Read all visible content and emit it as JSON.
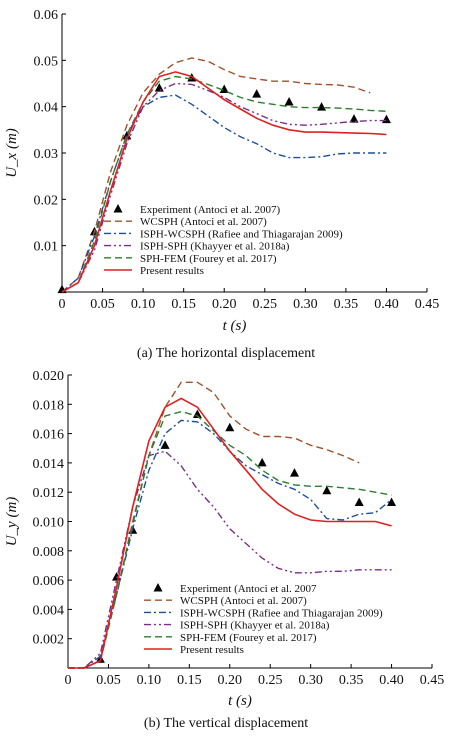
{
  "chart_data": [
    {
      "type": "line",
      "caption": "(a) The horizontal displacement",
      "xlabel": "t (s)",
      "ylabel": "U_x (m)",
      "xlim": [
        0,
        0.45
      ],
      "ylim": [
        0,
        0.06
      ],
      "xticks": [
        "0",
        "0.05",
        "0.10",
        "0.15",
        "0.20",
        "0.25",
        "0.30",
        "0.35",
        "0.40",
        "0.45"
      ],
      "yticks": [
        "0.01",
        "0.02",
        "0.03",
        "0.04",
        "0.05",
        "0.06"
      ],
      "legend_position": "bottom-center",
      "series": [
        {
          "name": "Experiment (Antoci et al. 2007)",
          "style": "marker",
          "color": "#000000",
          "x": [
            0.0,
            0.04,
            0.08,
            0.12,
            0.16,
            0.2,
            0.24,
            0.28,
            0.32,
            0.36,
            0.4
          ],
          "y": [
            0.0005,
            0.013,
            0.0337,
            0.044,
            0.0462,
            0.0437,
            0.0427,
            0.041,
            0.0399,
            0.0373,
            0.0372
          ]
        },
        {
          "name": "WCSPH (Antoci et al. 2007)",
          "style": "dashed",
          "color": "#a0522d",
          "x": [
            0.0,
            0.02,
            0.04,
            0.06,
            0.08,
            0.1,
            0.12,
            0.14,
            0.16,
            0.18,
            0.2,
            0.22,
            0.24,
            0.26,
            0.28,
            0.3,
            0.32,
            0.34,
            0.36,
            0.38
          ],
          "y": [
            0.0,
            0.003,
            0.013,
            0.026,
            0.036,
            0.043,
            0.047,
            0.0495,
            0.0505,
            0.0498,
            0.048,
            0.0465,
            0.046,
            0.0455,
            0.0455,
            0.045,
            0.0448,
            0.0447,
            0.0442,
            0.043
          ]
        },
        {
          "name": "ISPH-WCSPH (Rafiee and Thiagarajan 2009)",
          "style": "dashdot",
          "color": "#1f4e9e",
          "x": [
            0.0,
            0.02,
            0.04,
            0.06,
            0.08,
            0.1,
            0.12,
            0.14,
            0.16,
            0.18,
            0.2,
            0.22,
            0.24,
            0.26,
            0.28,
            0.3,
            0.32,
            0.34,
            0.36,
            0.38,
            0.4
          ],
          "y": [
            0.0,
            0.003,
            0.012,
            0.024,
            0.034,
            0.04,
            0.042,
            0.0425,
            0.0405,
            0.038,
            0.0355,
            0.0335,
            0.032,
            0.03,
            0.029,
            0.029,
            0.0292,
            0.0298,
            0.03,
            0.03,
            0.03
          ]
        },
        {
          "name": "ISPH-SPH (Khayyer et al. 2018a)",
          "style": "dashdotdot",
          "color": "#7a2d8c",
          "x": [
            0.0,
            0.02,
            0.04,
            0.06,
            0.08,
            0.1,
            0.12,
            0.14,
            0.16,
            0.18,
            0.2,
            0.22,
            0.24,
            0.26,
            0.28,
            0.3,
            0.32,
            0.34,
            0.36,
            0.38,
            0.4
          ],
          "y": [
            0.0,
            0.002,
            0.009,
            0.021,
            0.032,
            0.04,
            0.0435,
            0.045,
            0.0448,
            0.0435,
            0.042,
            0.04,
            0.0385,
            0.037,
            0.0362,
            0.036,
            0.0362,
            0.0365,
            0.0368,
            0.037,
            0.037
          ]
        },
        {
          "name": "SPH-FEM (Fourey et al. 2017)",
          "style": "dashed",
          "color": "#2e7d32",
          "x": [
            0.0,
            0.02,
            0.04,
            0.06,
            0.08,
            0.1,
            0.12,
            0.14,
            0.16,
            0.18,
            0.2,
            0.22,
            0.24,
            0.26,
            0.28,
            0.3,
            0.32,
            0.34,
            0.36,
            0.38,
            0.4
          ],
          "y": [
            0.0,
            0.002,
            0.011,
            0.024,
            0.034,
            0.041,
            0.0455,
            0.0465,
            0.046,
            0.0448,
            0.0435,
            0.042,
            0.041,
            0.0405,
            0.04,
            0.0398,
            0.0398,
            0.0397,
            0.0395,
            0.0392,
            0.039
          ]
        },
        {
          "name": "Present results",
          "style": "solid",
          "color": "#e02020",
          "x": [
            0.0,
            0.02,
            0.04,
            0.06,
            0.08,
            0.1,
            0.12,
            0.14,
            0.16,
            0.18,
            0.2,
            0.22,
            0.24,
            0.26,
            0.28,
            0.3,
            0.32,
            0.34,
            0.36,
            0.38,
            0.4
          ],
          "y": [
            0.0,
            0.002,
            0.01,
            0.022,
            0.033,
            0.041,
            0.0465,
            0.0475,
            0.0465,
            0.044,
            0.0415,
            0.0395,
            0.0375,
            0.036,
            0.035,
            0.0345,
            0.0345,
            0.0344,
            0.0343,
            0.0342,
            0.034
          ]
        }
      ]
    },
    {
      "type": "line",
      "caption": "(b) The vertical displacement",
      "xlabel": "t (s)",
      "ylabel": "U_y (m)",
      "xlim": [
        0,
        0.45
      ],
      "ylim": [
        0,
        0.02
      ],
      "xticks": [
        "0",
        "0.05",
        "0.10",
        "0.15",
        "0.20",
        "0.25",
        "0.30",
        "0.35",
        "0.40",
        "0.45"
      ],
      "yticks": [
        "0.002",
        "0.004",
        "0.006",
        "0.008",
        "0.010",
        "0.012",
        "0.014",
        "0.016",
        "0.018",
        "0.020"
      ],
      "legend_position": "bottom-center",
      "series": [
        {
          "name": "Experiment (Antoci et al. 2007",
          "style": "marker",
          "color": "#000000",
          "x": [
            0.04,
            0.06,
            0.08,
            0.12,
            0.16,
            0.2,
            0.24,
            0.28,
            0.32,
            0.36,
            0.4
          ],
          "y": [
            0.0006,
            0.0062,
            0.0094,
            0.0152,
            0.0173,
            0.0164,
            0.014,
            0.0133,
            0.0121,
            0.0113,
            0.0113
          ]
        },
        {
          "name": "WCSPH (Antoci et al. 2007)",
          "style": "dashed",
          "color": "#a0522d",
          "x": [
            0.0,
            0.02,
            0.04,
            0.06,
            0.08,
            0.1,
            0.12,
            0.14,
            0.16,
            0.18,
            0.2,
            0.22,
            0.24,
            0.26,
            0.28,
            0.3,
            0.32,
            0.34,
            0.36
          ],
          "y": [
            0.0,
            0.0,
            0.0005,
            0.005,
            0.01,
            0.0145,
            0.0178,
            0.0195,
            0.0195,
            0.0188,
            0.0172,
            0.0163,
            0.0158,
            0.0158,
            0.0157,
            0.0152,
            0.0149,
            0.0145,
            0.014
          ]
        },
        {
          "name": "ISPH-WCSPH (Rafiee and Thiagarajan 2009)",
          "style": "dashdot",
          "color": "#1f4e9e",
          "x": [
            0.0,
            0.02,
            0.04,
            0.06,
            0.08,
            0.1,
            0.12,
            0.14,
            0.16,
            0.18,
            0.2,
            0.22,
            0.24,
            0.26,
            0.28,
            0.3,
            0.32,
            0.34,
            0.36,
            0.38,
            0.4
          ],
          "y": [
            0.0,
            0.0,
            0.0008,
            0.005,
            0.0095,
            0.0135,
            0.016,
            0.0169,
            0.0168,
            0.016,
            0.0148,
            0.0138,
            0.0132,
            0.0126,
            0.0122,
            0.0115,
            0.0102,
            0.0101,
            0.0105,
            0.0106,
            0.0115
          ]
        },
        {
          "name": "ISPH-SPH (Khayyer et al. 2018a)",
          "style": "dashdotdot",
          "color": "#7a2d8c",
          "x": [
            0.0,
            0.02,
            0.04,
            0.06,
            0.08,
            0.1,
            0.12,
            0.14,
            0.16,
            0.18,
            0.2,
            0.22,
            0.24,
            0.26,
            0.28,
            0.3,
            0.32,
            0.34,
            0.36,
            0.38,
            0.4
          ],
          "y": [
            0.0,
            0.0,
            0.001,
            0.006,
            0.011,
            0.0145,
            0.0148,
            0.0138,
            0.0122,
            0.011,
            0.0095,
            0.0085,
            0.0075,
            0.0068,
            0.0065,
            0.0065,
            0.0066,
            0.0066,
            0.0067,
            0.0067,
            0.0067
          ]
        },
        {
          "name": "SPH-FEM (Fourey et al. 2017)",
          "style": "dashed",
          "color": "#2e7d32",
          "x": [
            0.0,
            0.02,
            0.04,
            0.06,
            0.08,
            0.1,
            0.12,
            0.14,
            0.16,
            0.18,
            0.2,
            0.22,
            0.24,
            0.26,
            0.28,
            0.3,
            0.32,
            0.34,
            0.36,
            0.38,
            0.4
          ],
          "y": [
            0.0,
            0.0,
            0.0005,
            0.005,
            0.0098,
            0.0145,
            0.0172,
            0.0175,
            0.0172,
            0.0162,
            0.0152,
            0.0145,
            0.0135,
            0.0128,
            0.0125,
            0.0124,
            0.0124,
            0.0123,
            0.0122,
            0.012,
            0.0118
          ]
        },
        {
          "name": "Present results",
          "style": "solid",
          "color": "#e02020",
          "x": [
            0.0,
            0.02,
            0.04,
            0.06,
            0.08,
            0.1,
            0.12,
            0.14,
            0.16,
            0.18,
            0.2,
            0.22,
            0.24,
            0.26,
            0.28,
            0.3,
            0.32,
            0.34,
            0.36,
            0.38,
            0.4
          ],
          "y": [
            0.0,
            0.0,
            0.0005,
            0.0055,
            0.011,
            0.0155,
            0.0178,
            0.0184,
            0.0178,
            0.0163,
            0.0148,
            0.0135,
            0.0122,
            0.0112,
            0.0105,
            0.0101,
            0.01,
            0.01,
            0.01,
            0.01,
            0.0097
          ]
        }
      ]
    }
  ]
}
